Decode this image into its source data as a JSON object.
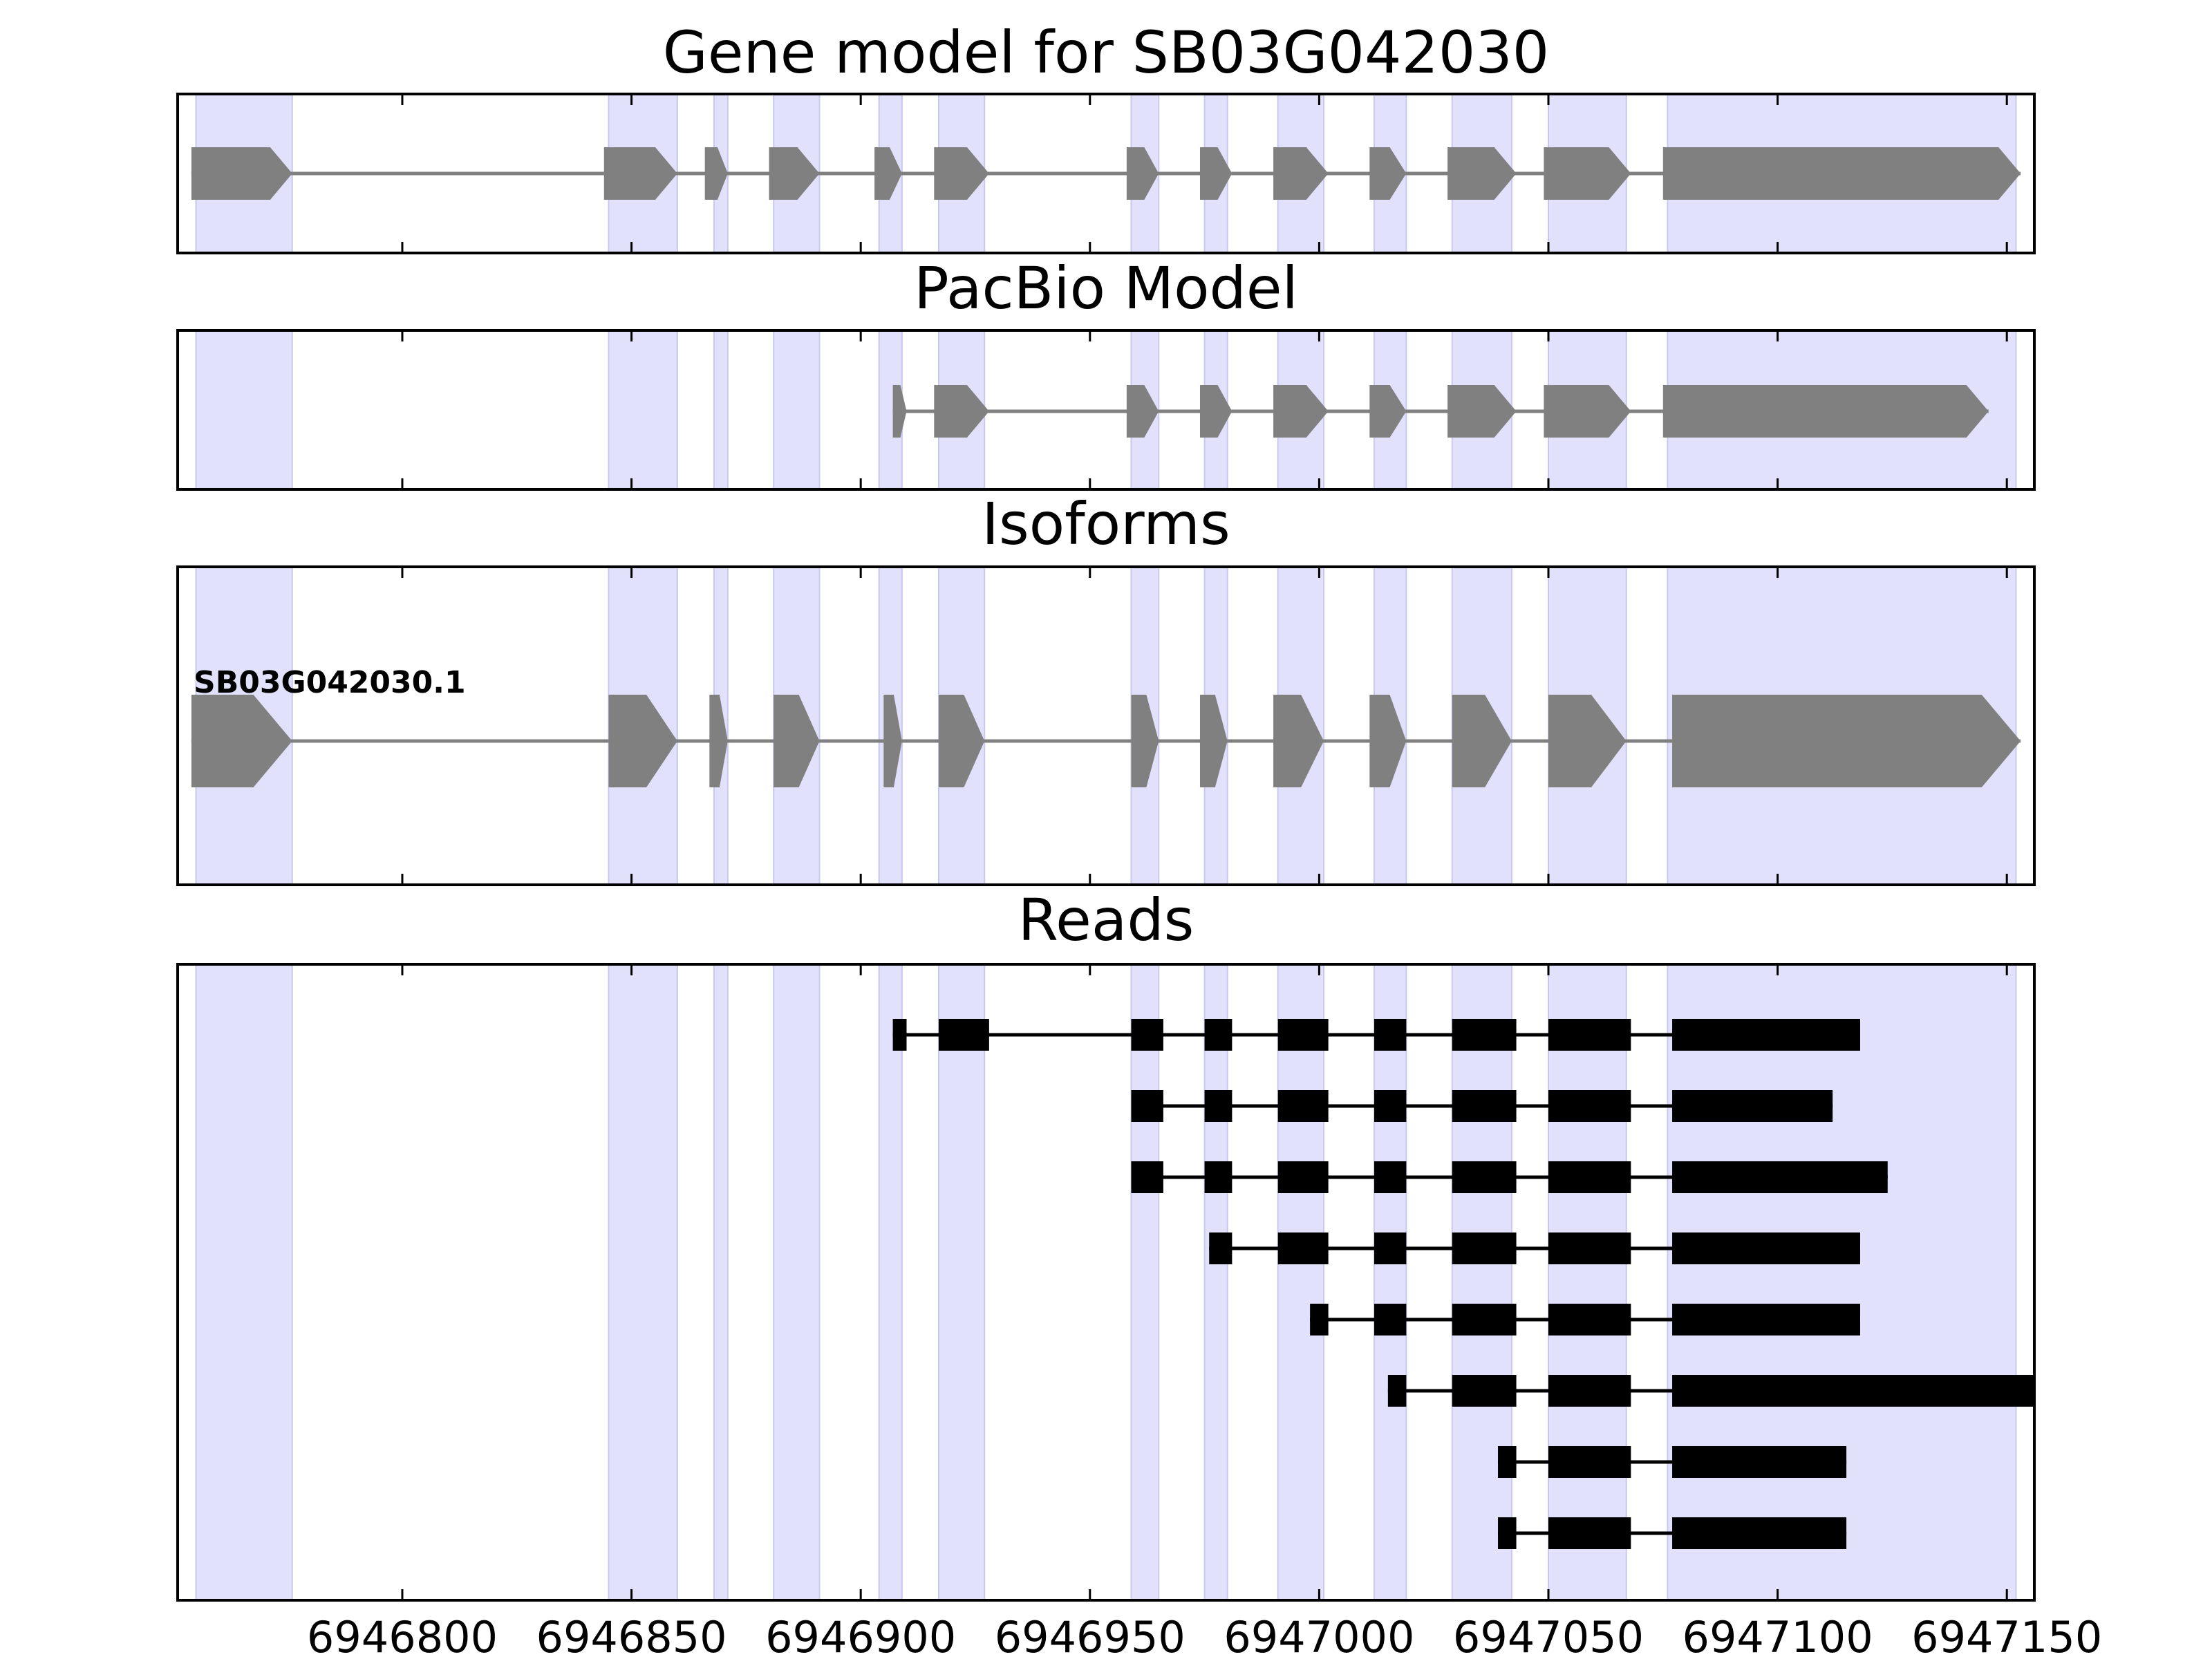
{
  "figure": {
    "panels": [
      {
        "id": "gene-model",
        "title": "Gene model for SB03G042030"
      },
      {
        "id": "pacbio-model",
        "title": "PacBio Model"
      },
      {
        "id": "isoforms",
        "title": "Isoforms"
      },
      {
        "id": "reads",
        "title": "Reads"
      }
    ],
    "x_ticks": [
      {
        "value": 6946800,
        "label": "6946800"
      },
      {
        "value": 6946850,
        "label": "6946850"
      },
      {
        "value": 6946900,
        "label": "6946900"
      },
      {
        "value": 6946950,
        "label": "6946950"
      },
      {
        "value": 6947000,
        "label": "6947000"
      },
      {
        "value": 6947050,
        "label": "6947050"
      },
      {
        "value": 6947100,
        "label": "6947100"
      },
      {
        "value": 6947150,
        "label": "6947150"
      }
    ],
    "x_range": [
      6946751,
      6947156
    ],
    "isoform_label": "SB03G042030.1",
    "colors": {
      "highlight": "#e1e1fb",
      "highlight_edge": "#c9c9f0",
      "model_fill": "#808080",
      "model_line": "#808080",
      "read_fill": "#000000",
      "axis": "#000000"
    }
  },
  "highlight_regions": [
    [
      6946755,
      6946776
    ],
    [
      6946845,
      6946860
    ],
    [
      6946868,
      6946871
    ],
    [
      6946881,
      6946891
    ],
    [
      6946904,
      6946909
    ],
    [
      6946917,
      6946927
    ],
    [
      6946959,
      6946965
    ],
    [
      6946975,
      6946980
    ],
    [
      6946991,
      6947001
    ],
    [
      6947012,
      6947019
    ],
    [
      6947029,
      6947042
    ],
    [
      6947050,
      6947067
    ],
    [
      6947076,
      6947152
    ]
  ],
  "gene_model": [
    [
      6946754,
      6946776
    ],
    [
      6946844,
      6946860
    ],
    [
      6946866,
      6946871
    ],
    [
      6946880,
      6946891
    ],
    [
      6946903,
      6946909
    ],
    [
      6946916,
      6946928
    ],
    [
      6946958,
      6946965
    ],
    [
      6946974,
      6946981
    ],
    [
      6946990,
      6947002
    ],
    [
      6947011,
      6947019
    ],
    [
      6947028,
      6947043
    ],
    [
      6947049,
      6947068
    ],
    [
      6947075,
      6947153
    ]
  ],
  "pacbio_model": [
    [
      6946907,
      6946910
    ],
    [
      6946916,
      6946928
    ],
    [
      6946958,
      6946965
    ],
    [
      6946974,
      6946981
    ],
    [
      6946990,
      6947002
    ],
    [
      6947011,
      6947019
    ],
    [
      6947028,
      6947043
    ],
    [
      6947049,
      6947068
    ],
    [
      6947075,
      6947146
    ]
  ],
  "isoform_model": [
    [
      6946754,
      6946776
    ],
    [
      6946845,
      6946860
    ],
    [
      6946867,
      6946871
    ],
    [
      6946881,
      6946891
    ],
    [
      6946905,
      6946909
    ],
    [
      6946917,
      6946927
    ],
    [
      6946959,
      6946965
    ],
    [
      6946974,
      6946980
    ],
    [
      6946990,
      6947001
    ],
    [
      6947011,
      6947019
    ],
    [
      6947029,
      6947042
    ],
    [
      6947050,
      6947067
    ],
    [
      6947077,
      6947153
    ]
  ],
  "reads": [
    [
      [
        6946907,
        6946910
      ],
      [
        6946917,
        6946928
      ],
      [
        6946959,
        6946966
      ],
      [
        6946975,
        6946981
      ],
      [
        6946991,
        6947002
      ],
      [
        6947012,
        6947019
      ],
      [
        6947029,
        6947043
      ],
      [
        6947050,
        6947068
      ],
      [
        6947077,
        6947118
      ]
    ],
    [
      [
        6946959,
        6946966
      ],
      [
        6946975,
        6946981
      ],
      [
        6946991,
        6947002
      ],
      [
        6947012,
        6947019
      ],
      [
        6947029,
        6947043
      ],
      [
        6947050,
        6947068
      ],
      [
        6947077,
        6947112
      ]
    ],
    [
      [
        6946959,
        6946966
      ],
      [
        6946975,
        6946981
      ],
      [
        6946991,
        6947002
      ],
      [
        6947012,
        6947019
      ],
      [
        6947029,
        6947043
      ],
      [
        6947050,
        6947068
      ],
      [
        6947077,
        6947124
      ]
    ],
    [
      [
        6946976,
        6946981
      ],
      [
        6946991,
        6947002
      ],
      [
        6947012,
        6947019
      ],
      [
        6947029,
        6947043
      ],
      [
        6947050,
        6947068
      ],
      [
        6947077,
        6947118
      ]
    ],
    [
      [
        6946998,
        6947002
      ],
      [
        6947012,
        6947019
      ],
      [
        6947029,
        6947043
      ],
      [
        6947050,
        6947068
      ],
      [
        6947077,
        6947118
      ]
    ],
    [
      [
        6947015,
        6947019
      ],
      [
        6947029,
        6947043
      ],
      [
        6947050,
        6947068
      ],
      [
        6947077,
        6947156
      ]
    ],
    [
      [
        6947039,
        6947043
      ],
      [
        6947050,
        6947068
      ],
      [
        6947077,
        6947115
      ]
    ],
    [
      [
        6947039,
        6947043
      ],
      [
        6947050,
        6947068
      ],
      [
        6947077,
        6947115
      ]
    ]
  ]
}
